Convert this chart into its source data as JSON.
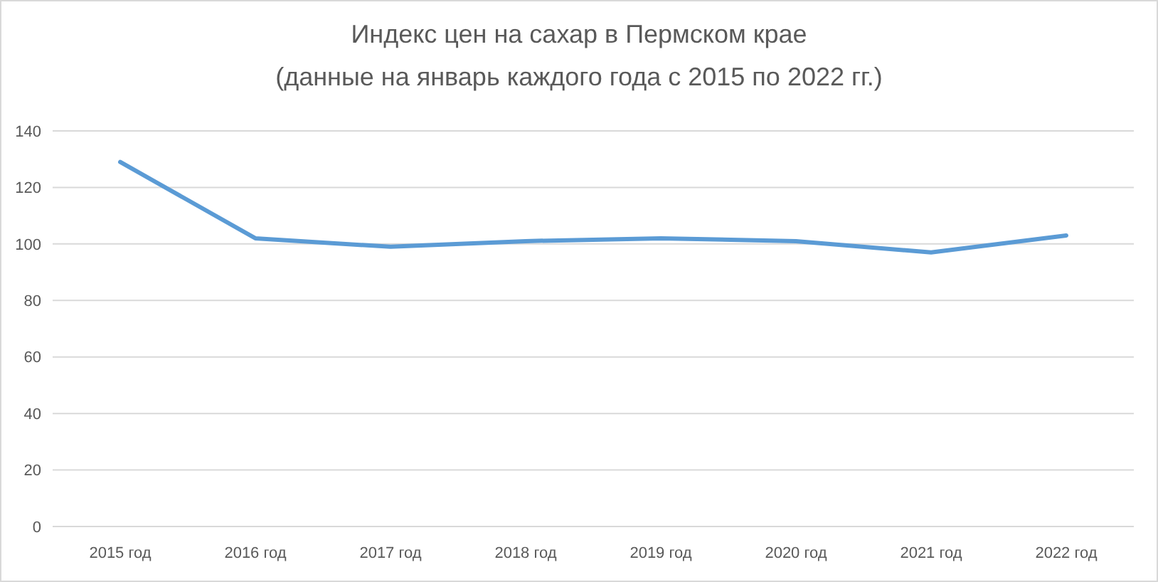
{
  "chart_data": {
    "type": "line",
    "title": "Индекс цен на сахар в Пермском крае",
    "subtitle": "(данные на январь каждого года с 2015 по 2022 гг.)",
    "categories": [
      "2015 год",
      "2016 год",
      "2017 год",
      "2018 год",
      "2019 год",
      "2020 год",
      "2021 год",
      "2022 год"
    ],
    "series": [
      {
        "color": "#5b9bd5",
        "values": [
          129,
          102,
          99,
          101,
          102,
          101,
          97,
          103
        ]
      }
    ],
    "ylim": [
      0,
      140
    ],
    "yticks": [
      0,
      20,
      40,
      60,
      80,
      100,
      120,
      140
    ],
    "grid": "y"
  }
}
